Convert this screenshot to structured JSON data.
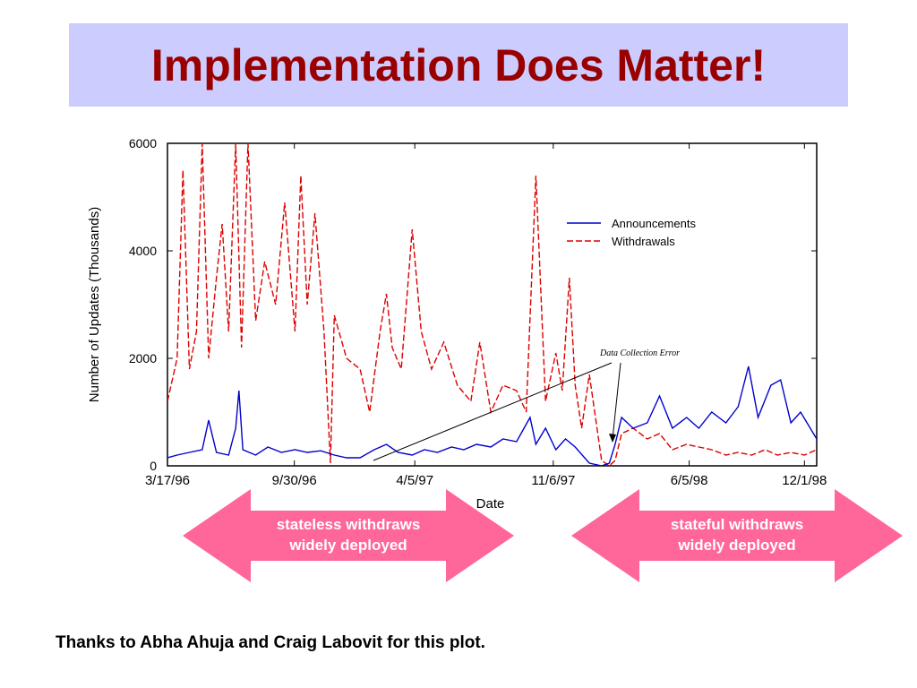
{
  "title": "Implementation Does Matter!",
  "credit": "Thanks to Abha Ahuja and Craig Labovit for this plot.",
  "arrows": [
    {
      "label_line1": "stateless withdraws",
      "label_line2": "widely deployed"
    },
    {
      "label_line1": "stateful withdraws",
      "label_line2": "widely deployed"
    }
  ],
  "colors": {
    "title": "#990000",
    "title_bg": "#ccccff",
    "arrow": "#ff6699",
    "announcements": "#0000cc",
    "withdrawals": "#dd0000"
  },
  "chart_data": {
    "type": "line",
    "xlabel": "Date",
    "ylabel": "Number of Updates (Thousands)",
    "ylim": [
      0,
      6000
    ],
    "yticks": [
      0,
      2000,
      4000,
      6000
    ],
    "xticks": [
      "3/17/96",
      "9/30/96",
      "4/5/97",
      "11/6/97",
      "6/5/98",
      "12/1/98"
    ],
    "x_range": [
      "3/17/96",
      "12/20/98"
    ],
    "annotation": "Data Collection Error",
    "legend_position": "top-right",
    "series": [
      {
        "name": "Announcements",
        "style": "solid",
        "points": [
          [
            "1996-03-17",
            150
          ],
          [
            "1996-04-01",
            200
          ],
          [
            "1996-04-20",
            250
          ],
          [
            "1996-05-10",
            300
          ],
          [
            "1996-05-20",
            850
          ],
          [
            "1996-06-01",
            250
          ],
          [
            "1996-06-20",
            200
          ],
          [
            "1996-07-01",
            700
          ],
          [
            "1996-07-06",
            1400
          ],
          [
            "1996-07-12",
            300
          ],
          [
            "1996-08-01",
            200
          ],
          [
            "1996-08-20",
            350
          ],
          [
            "1996-09-10",
            250
          ],
          [
            "1996-10-01",
            300
          ],
          [
            "1996-10-20",
            250
          ],
          [
            "1996-11-10",
            280
          ],
          [
            "1996-12-01",
            200
          ],
          [
            "1996-12-20",
            150
          ],
          [
            "1997-01-10",
            150
          ],
          [
            "1997-02-01",
            300
          ],
          [
            "1997-02-20",
            400
          ],
          [
            "1997-03-10",
            250
          ],
          [
            "1997-04-01",
            200
          ],
          [
            "1997-04-20",
            300
          ],
          [
            "1997-05-10",
            250
          ],
          [
            "1997-06-01",
            350
          ],
          [
            "1997-06-20",
            300
          ],
          [
            "1997-07-10",
            400
          ],
          [
            "1997-08-01",
            350
          ],
          [
            "1997-08-20",
            500
          ],
          [
            "1997-09-10",
            450
          ],
          [
            "1997-10-01",
            900
          ],
          [
            "1997-10-10",
            400
          ],
          [
            "1997-10-25",
            700
          ],
          [
            "1997-11-10",
            300
          ],
          [
            "1997-11-25",
            500
          ],
          [
            "1997-12-10",
            350
          ],
          [
            "1998-01-01",
            50
          ],
          [
            "1998-01-20",
            0
          ],
          [
            "1998-02-01",
            50
          ],
          [
            "1998-02-10",
            400
          ],
          [
            "1998-02-20",
            900
          ],
          [
            "1998-03-10",
            700
          ],
          [
            "1998-04-01",
            800
          ],
          [
            "1998-04-20",
            1300
          ],
          [
            "1998-05-10",
            700
          ],
          [
            "1998-06-01",
            900
          ],
          [
            "1998-06-20",
            700
          ],
          [
            "1998-07-10",
            1000
          ],
          [
            "1998-08-01",
            800
          ],
          [
            "1998-08-20",
            1100
          ],
          [
            "1998-09-05",
            1850
          ],
          [
            "1998-09-20",
            900
          ],
          [
            "1998-10-10",
            1500
          ],
          [
            "1998-10-25",
            1600
          ],
          [
            "1998-11-10",
            800
          ],
          [
            "1998-11-25",
            1000
          ],
          [
            "1998-12-10",
            700
          ],
          [
            "1998-12-20",
            500
          ]
        ]
      },
      {
        "name": "Withdrawals",
        "style": "dashed",
        "points": [
          [
            "1996-03-17",
            1200
          ],
          [
            "1996-04-01",
            2000
          ],
          [
            "1996-04-10",
            5500
          ],
          [
            "1996-04-20",
            1800
          ],
          [
            "1996-05-01",
            2500
          ],
          [
            "1996-05-10",
            6000
          ],
          [
            "1996-05-20",
            2000
          ],
          [
            "1996-06-01",
            3500
          ],
          [
            "1996-06-10",
            4500
          ],
          [
            "1996-06-20",
            2500
          ],
          [
            "1996-07-01",
            6000
          ],
          [
            "1996-07-10",
            2200
          ],
          [
            "1996-07-20",
            6000
          ],
          [
            "1996-08-01",
            2700
          ],
          [
            "1996-08-15",
            3800
          ],
          [
            "1996-09-01",
            3000
          ],
          [
            "1996-09-15",
            4900
          ],
          [
            "1996-10-01",
            2500
          ],
          [
            "1996-10-10",
            5400
          ],
          [
            "1996-10-20",
            3000
          ],
          [
            "1996-11-01",
            4700
          ],
          [
            "1996-11-15",
            2500
          ],
          [
            "1996-11-25",
            50
          ],
          [
            "1996-12-01",
            2800
          ],
          [
            "1996-12-20",
            2000
          ],
          [
            "1997-01-10",
            1800
          ],
          [
            "1997-01-25",
            1000
          ],
          [
            "1997-02-10",
            2500
          ],
          [
            "1997-02-20",
            3200
          ],
          [
            "1997-03-01",
            2200
          ],
          [
            "1997-03-15",
            1800
          ],
          [
            "1997-04-01",
            4400
          ],
          [
            "1997-04-15",
            2500
          ],
          [
            "1997-05-01",
            1800
          ],
          [
            "1997-05-20",
            2300
          ],
          [
            "1997-06-10",
            1500
          ],
          [
            "1997-07-01",
            1200
          ],
          [
            "1997-07-15",
            2300
          ],
          [
            "1997-08-01",
            1000
          ],
          [
            "1997-08-20",
            1500
          ],
          [
            "1997-09-10",
            1400
          ],
          [
            "1997-09-25",
            1000
          ],
          [
            "1997-10-10",
            5400
          ],
          [
            "1997-10-25",
            1200
          ],
          [
            "1997-11-10",
            2100
          ],
          [
            "1997-11-20",
            1400
          ],
          [
            "1997-12-01",
            3500
          ],
          [
            "1997-12-10",
            1500
          ],
          [
            "1997-12-20",
            700
          ],
          [
            "1998-01-01",
            1700
          ],
          [
            "1998-01-20",
            100
          ],
          [
            "1998-02-01",
            0
          ],
          [
            "1998-02-10",
            100
          ],
          [
            "1998-02-20",
            600
          ],
          [
            "1998-03-10",
            700
          ],
          [
            "1998-04-01",
            500
          ],
          [
            "1998-04-20",
            600
          ],
          [
            "1998-05-10",
            300
          ],
          [
            "1998-06-01",
            400
          ],
          [
            "1998-06-20",
            350
          ],
          [
            "1998-07-10",
            300
          ],
          [
            "1998-08-01",
            200
          ],
          [
            "1998-08-20",
            250
          ],
          [
            "1998-09-10",
            200
          ],
          [
            "1998-10-01",
            300
          ],
          [
            "1998-10-20",
            200
          ],
          [
            "1998-11-10",
            250
          ],
          [
            "1998-12-01",
            200
          ],
          [
            "1998-12-20",
            300
          ]
        ]
      }
    ]
  }
}
